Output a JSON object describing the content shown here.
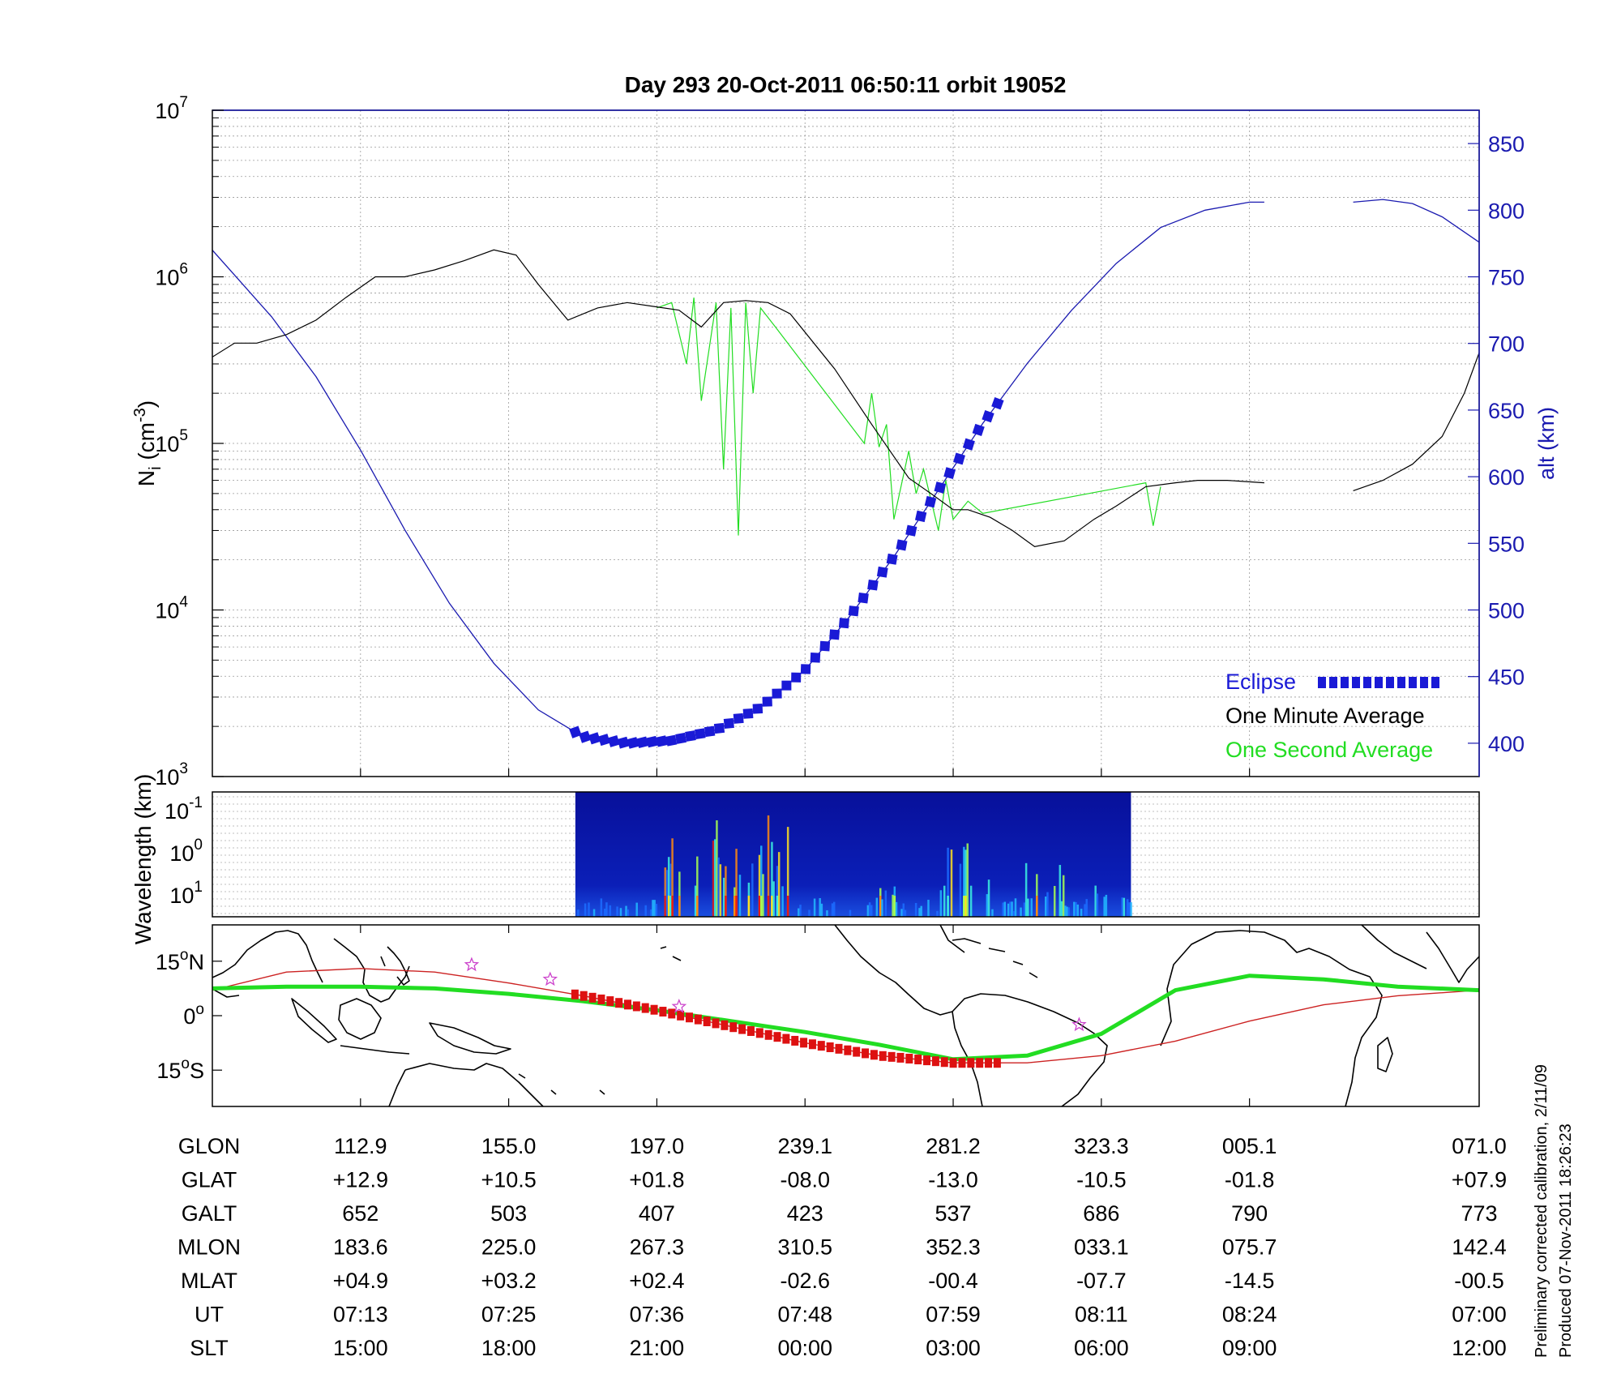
{
  "chart_data": [
    {
      "type": "line",
      "title": "Day 293  20-Oct-2011 06:50:11   orbit 19052",
      "ylabel_main": "N",
      "ylabel_sub": "i",
      "ylabel_unit_open": " (cm",
      "ylabel_unit_exp": "-3",
      "ylabel_unit_close": ")",
      "y_scale": "log",
      "ylim": [
        1000,
        10000000
      ],
      "y_ticks": [
        {
          "base": "10",
          "exp": "3"
        },
        {
          "base": "10",
          "exp": "4"
        },
        {
          "base": "10",
          "exp": "5"
        },
        {
          "base": "10",
          "exp": "6"
        },
        {
          "base": "10",
          "exp": "7"
        }
      ],
      "y2label": "alt (km)",
      "y2lim": [
        375,
        875
      ],
      "y2_ticks": [
        "400",
        "450",
        "500",
        "550",
        "600",
        "650",
        "700",
        "750",
        "800",
        "850"
      ],
      "x_range": [
        0,
        8.55
      ],
      "legend_position": "bottom-right",
      "legend": [
        {
          "label": "Eclipse",
          "color": "#1a1ad6"
        },
        {
          "label": "One Minute Average",
          "color": "#000000"
        },
        {
          "label": "One Second Average",
          "color": "#22dd22"
        }
      ],
      "series": [
        {
          "key": "ni_minute",
          "color": "#000000",
          "x": [
            0.0,
            0.15,
            0.3,
            0.5,
            0.7,
            0.9,
            1.1,
            1.3,
            1.5,
            1.7,
            1.9,
            2.05,
            2.2,
            2.4,
            2.6,
            2.8,
            3.0,
            3.15,
            3.3,
            3.45,
            3.6,
            3.75,
            3.9,
            4.2,
            4.45,
            4.7,
            4.85,
            5.0,
            5.1,
            5.25,
            5.4,
            5.55,
            5.75,
            5.95,
            6.1,
            6.3,
            6.5,
            6.65,
            6.85,
            7.1
          ],
          "y": [
            330000,
            400000,
            400000,
            450000,
            550000,
            750000,
            1000000,
            1000000,
            1100000,
            1250000,
            1450000,
            1350000,
            900000,
            550000,
            650000,
            700000,
            660000,
            630000,
            500000,
            700000,
            720000,
            700000,
            600000,
            280000,
            130000,
            62000,
            50000,
            40000,
            40000,
            36000,
            30000,
            24000,
            26000,
            35000,
            42000,
            55000,
            58000,
            60000,
            60000,
            58000
          ]
        },
        {
          "key": "ni_second",
          "color": "#22dd22",
          "x": [
            3.0,
            3.1,
            3.2,
            3.25,
            3.3,
            3.4,
            3.45,
            3.5,
            3.55,
            3.6,
            3.65,
            3.7,
            3.8,
            4.4,
            4.45,
            4.5,
            4.55,
            4.6,
            4.7,
            4.75,
            4.8,
            4.9,
            4.95,
            5.0,
            5.1,
            5.2,
            6.3,
            6.35,
            6.4
          ],
          "y": [
            650000,
            700000,
            300000,
            750000,
            180000,
            700000,
            70000,
            650000,
            28000,
            700000,
            200000,
            650000,
            500000,
            100000,
            200000,
            95000,
            130000,
            35000,
            90000,
            50000,
            70000,
            30000,
            60000,
            35000,
            45000,
            38000,
            58000,
            32000,
            55000
          ]
        },
        {
          "key": "ni_minute_end",
          "color": "#000000",
          "x": [
            7.7,
            7.9,
            8.1,
            8.3,
            8.45,
            8.55
          ],
          "y": [
            52000,
            60000,
            75000,
            110000,
            200000,
            350000
          ]
        }
      ],
      "altitude": {
        "color": "#1a1ab0",
        "x": [
          0.0,
          0.2,
          0.4,
          0.7,
          1.0,
          1.3,
          1.6,
          1.9,
          2.2,
          2.5,
          2.8,
          3.1,
          3.4,
          3.7,
          4.0,
          4.3,
          4.6,
          4.9,
          5.2,
          5.5,
          5.8,
          6.1,
          6.4,
          6.7,
          7.0,
          7.1
        ],
        "y": [
          770,
          745,
          720,
          675,
          620,
          560,
          505,
          460,
          425,
          405,
          400,
          402,
          410,
          427,
          455,
          495,
          540,
          590,
          640,
          685,
          725,
          760,
          787,
          800,
          806,
          806
        ],
        "x2": [
          7.7,
          7.9,
          8.1,
          8.3,
          8.55
        ],
        "y2": [
          806,
          808,
          805,
          795,
          776
        ]
      },
      "eclipse": {
        "color": "#1a1ad6",
        "x_start": 2.45,
        "x_end": 5.3
      }
    },
    {
      "type": "heatmap",
      "ylabel": "Wavelength (km)",
      "y_ticks": [
        {
          "base": "10",
          "exp": "-1"
        },
        {
          "base": "10",
          "exp": "0"
        },
        {
          "base": "10",
          "exp": "1"
        }
      ],
      "x_start": 2.45,
      "x_end": 6.2
    },
    {
      "type": "line",
      "title": "",
      "y_ticks": [
        {
          "num": "15",
          "deg": "o",
          "hemi": "N"
        },
        {
          "num": "0",
          "deg": "o",
          "hemi": ""
        },
        {
          "num": "15",
          "deg": "o",
          "hemi": "S"
        }
      ],
      "ylim": [
        -25,
        25
      ],
      "series": [
        {
          "key": "track_green",
          "color": "#22dd22",
          "x": [
            0.0,
            0.5,
            1.0,
            1.5,
            2.0,
            2.5,
            3.0,
            3.5,
            4.0,
            4.5,
            5.0,
            5.5,
            6.0,
            6.5,
            7.0,
            7.5,
            8.0,
            8.55
          ],
          "y": [
            7.5,
            8.0,
            8.0,
            7.5,
            6.0,
            4.0,
            1.5,
            -1.5,
            -4.5,
            -8.0,
            -12.0,
            -11.0,
            -5.0,
            7.0,
            11.0,
            10.0,
            8.0,
            7.0
          ]
        },
        {
          "key": "track_red",
          "color": "#cc2222",
          "x": [
            0.0,
            0.5,
            1.0,
            1.5,
            2.0,
            2.5,
            3.0,
            3.5,
            4.0,
            4.5,
            5.0,
            5.5,
            6.0,
            6.5,
            7.0,
            7.5,
            8.0,
            8.55
          ],
          "y": [
            7.0,
            12.0,
            13.0,
            12.0,
            9.0,
            5.5,
            1.5,
            -3.0,
            -7.5,
            -11.0,
            -13.0,
            -13.0,
            -11.0,
            -7.0,
            -1.5,
            3.0,
            5.5,
            7.0
          ]
        }
      ],
      "eclipse": {
        "color": "#dd1111",
        "x_start": 2.45,
        "x_end": 5.3
      },
      "stars": {
        "color": "#cc44cc",
        "x": [
          1.75,
          2.28,
          3.15,
          5.85
        ],
        "y": [
          14.0,
          10.0,
          2.5,
          -2.5
        ]
      }
    },
    {
      "type": "table",
      "columns_x": [
        1,
        2,
        3,
        4,
        5,
        6,
        7,
        8.55
      ],
      "rows": [
        {
          "label": "GLON",
          "values": [
            "112.9",
            "155.0",
            "197.0",
            "239.1",
            "281.2",
            "323.3",
            "005.1",
            "071.0"
          ]
        },
        {
          "label": "GLAT",
          "values": [
            "+12.9",
            "+10.5",
            "+01.8",
            "-08.0",
            "-13.0",
            "-10.5",
            "-01.8",
            "+07.9"
          ]
        },
        {
          "label": "GALT",
          "values": [
            "652",
            "503",
            "407",
            "423",
            "537",
            "686",
            "790",
            "773"
          ]
        },
        {
          "label": "MLON",
          "values": [
            "183.6",
            "225.0",
            "267.3",
            "310.5",
            "352.3",
            "033.1",
            "075.7",
            "142.4"
          ]
        },
        {
          "label": "MLAT",
          "values": [
            "+04.9",
            "+03.2",
            "+02.4",
            "-02.6",
            "-00.4",
            "-07.7",
            "-14.5",
            "-00.5"
          ]
        },
        {
          "label": "UT",
          "values": [
            "07:13",
            "07:25",
            "07:36",
            "07:48",
            "07:59",
            "08:11",
            "08:24",
            "07:00"
          ]
        },
        {
          "label": "SLT",
          "values": [
            "15:00",
            "18:00",
            "21:00",
            "00:00",
            "03:00",
            "06:00",
            "09:00",
            "12:00"
          ]
        }
      ]
    }
  ],
  "notes": {
    "calibration": "Preliminary corrected calibration, 2/11/09",
    "produced": "Produced 07-Nov-2011 18:26:23"
  }
}
